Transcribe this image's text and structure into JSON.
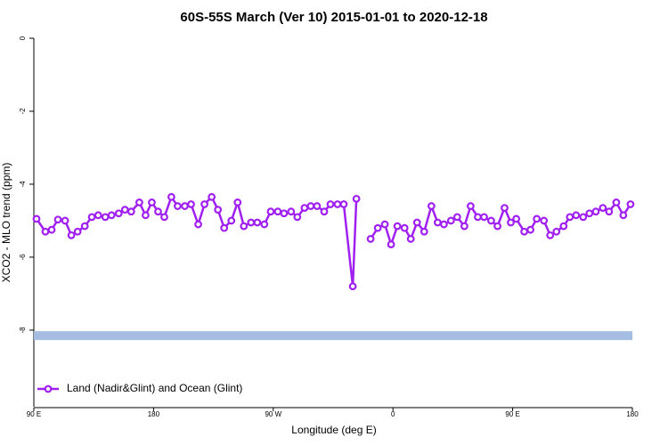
{
  "chart_data": {
    "type": "line",
    "title": "60S-55S March (Ver 10)   2015-01-01 to 2020-12-18",
    "xlabel": "Longitude (deg E)",
    "ylabel": "XCO2 - MLO trend (ppm)",
    "xlim": [
      90,
      540
    ],
    "xticks": [
      {
        "value": 90,
        "label": "90 E"
      },
      180,
      {
        "value": 270,
        "label": "90 W"
      },
      {
        "value": 360,
        "label": "0"
      },
      {
        "value": 450,
        "label": "90 E"
      },
      {
        "value": 540,
        "label": "180"
      }
    ],
    "ylim": [
      -10.1,
      0
    ],
    "yticks": [
      0,
      -2,
      -4,
      -6,
      -8
    ],
    "band": {
      "y": -8.15,
      "color": "#a4bde0"
    },
    "legend": "bottomleft",
    "x": [
      92.0,
      98.7,
      103.4,
      108.1,
      113.5,
      118.2,
      122.9,
      128.3,
      133.6,
      138.4,
      143.7,
      148.4,
      153.8,
      158.5,
      163.2,
      169.3,
      174.0,
      178.7,
      183.4,
      188.1,
      193.4,
      198.1,
      203.5,
      208.2,
      213.6,
      218.3,
      223.7,
      228.4,
      233.1,
      238.5,
      243.2,
      247.9,
      253.3,
      258.0,
      263.3,
      268.1,
      273.4,
      278.1,
      283.4,
      288.1,
      293.5,
      298.2,
      302.9,
      308.3,
      313.0,
      318.3,
      323.0,
      329.8,
      332.5,
      338.0,
      343.2,
      348.6,
      353.9,
      358.6,
      363.3,
      368.7,
      373.4,
      378.1,
      383.5,
      388.9,
      393.6,
      398.3,
      403.6,
      408.3,
      413.7,
      418.4,
      423.8,
      428.5,
      433.8,
      438.6,
      443.9,
      448.6,
      452.7,
      458.7,
      463.4,
      468.1,
      473.5,
      478.2,
      482.9,
      488.3,
      493.0,
      497.7,
      503.0,
      507.7,
      512.5,
      517.8,
      522.5,
      527.9,
      533.2,
      538.6
    ],
    "series": [
      {
        "name": "Land (Nadir&Glint) and Ocean (Glint)",
        "color": "#a020f0",
        "values": [
          -4.95,
          -5.3,
          -5.25,
          -4.97,
          -5.0,
          -5.4,
          -5.3,
          -5.15,
          -4.9,
          -4.85,
          -4.9,
          -4.85,
          -4.8,
          -4.7,
          -4.75,
          -4.5,
          -4.85,
          -4.5,
          -4.75,
          -4.9,
          -4.35,
          -4.6,
          -4.6,
          -4.55,
          -5.1,
          -4.55,
          -4.35,
          -4.7,
          -5.2,
          -5.0,
          -4.5,
          -5.15,
          -5.05,
          -5.05,
          -5.1,
          -4.75,
          -4.75,
          -4.8,
          -4.75,
          -4.9,
          -4.65,
          -4.6,
          -4.6,
          -4.75,
          -4.55,
          -4.55,
          -4.55,
          -6.8,
          -4.4,
          null,
          -5.5,
          -5.2,
          -5.1,
          -5.65,
          -5.15,
          -5.2,
          -5.5,
          -5.05,
          -5.3,
          -4.6,
          -5.05,
          -5.1,
          -5.0,
          -4.9,
          -5.15,
          -4.6,
          -4.9,
          -4.9,
          -5.0,
          -5.15,
          -4.65,
          -5.05,
          -4.95,
          -5.3,
          -5.25,
          -4.95,
          -5.0,
          -5.4,
          -5.3,
          -5.15,
          -4.9,
          -4.85,
          -4.9,
          -4.8,
          -4.75,
          -4.65,
          -4.75,
          -4.5,
          -4.85,
          -4.55
        ]
      }
    ]
  }
}
